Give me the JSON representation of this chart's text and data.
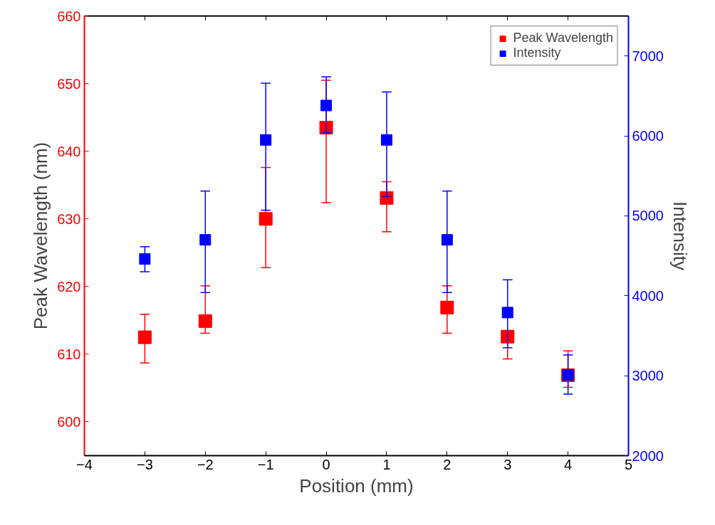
{
  "chart_data": {
    "type": "scatter",
    "xlabel": "Position (mm)",
    "ylabel": "Peak Wavelength (nm)",
    "y2label": "Intensity",
    "x": [
      -3,
      -2,
      -1,
      0,
      1,
      2,
      3,
      4
    ],
    "series": [
      {
        "name": "Peak Wavelength",
        "color": "#ff0000",
        "values": [
          612.5,
          614.9,
          630.0,
          643.5,
          633.1,
          616.9,
          612.6,
          606.9
        ],
        "errors": [
          [
            608.7,
            615.9
          ],
          [
            613.1,
            620.1
          ],
          [
            622.8,
            637.6
          ],
          [
            632.4,
            650.5
          ],
          [
            628.1,
            635.5
          ],
          [
            613.1,
            620.1
          ],
          [
            609.3,
            612.6
          ],
          [
            605.1,
            610.5
          ]
        ]
      },
      {
        "name": "Intensity",
        "color": "#0000ff",
        "axis": "y2",
        "values": [
          4460,
          4700,
          5950,
          6380,
          5950,
          4700,
          3790,
          3010
        ],
        "errors": [
          [
            4300,
            4615
          ],
          [
            4040,
            5310
          ],
          [
            5070,
            6660
          ],
          [
            6040,
            6740
          ],
          [
            5240,
            6550
          ],
          [
            4040,
            5310
          ],
          [
            3350,
            4200
          ],
          [
            2770,
            3260
          ]
        ]
      }
    ],
    "xlim": [
      -4,
      5
    ],
    "xticks": [
      -4,
      -3,
      -2,
      -1,
      0,
      1,
      2,
      3,
      4,
      5
    ],
    "ylim": [
      595,
      660
    ],
    "yticks": [
      600,
      610,
      620,
      630,
      640,
      650,
      660
    ],
    "y2lim": [
      2000,
      7500
    ],
    "y2ticks": [
      2000,
      3000,
      4000,
      5000,
      6000,
      7000
    ],
    "marker": "square",
    "legend": "top right",
    "grid": false
  }
}
